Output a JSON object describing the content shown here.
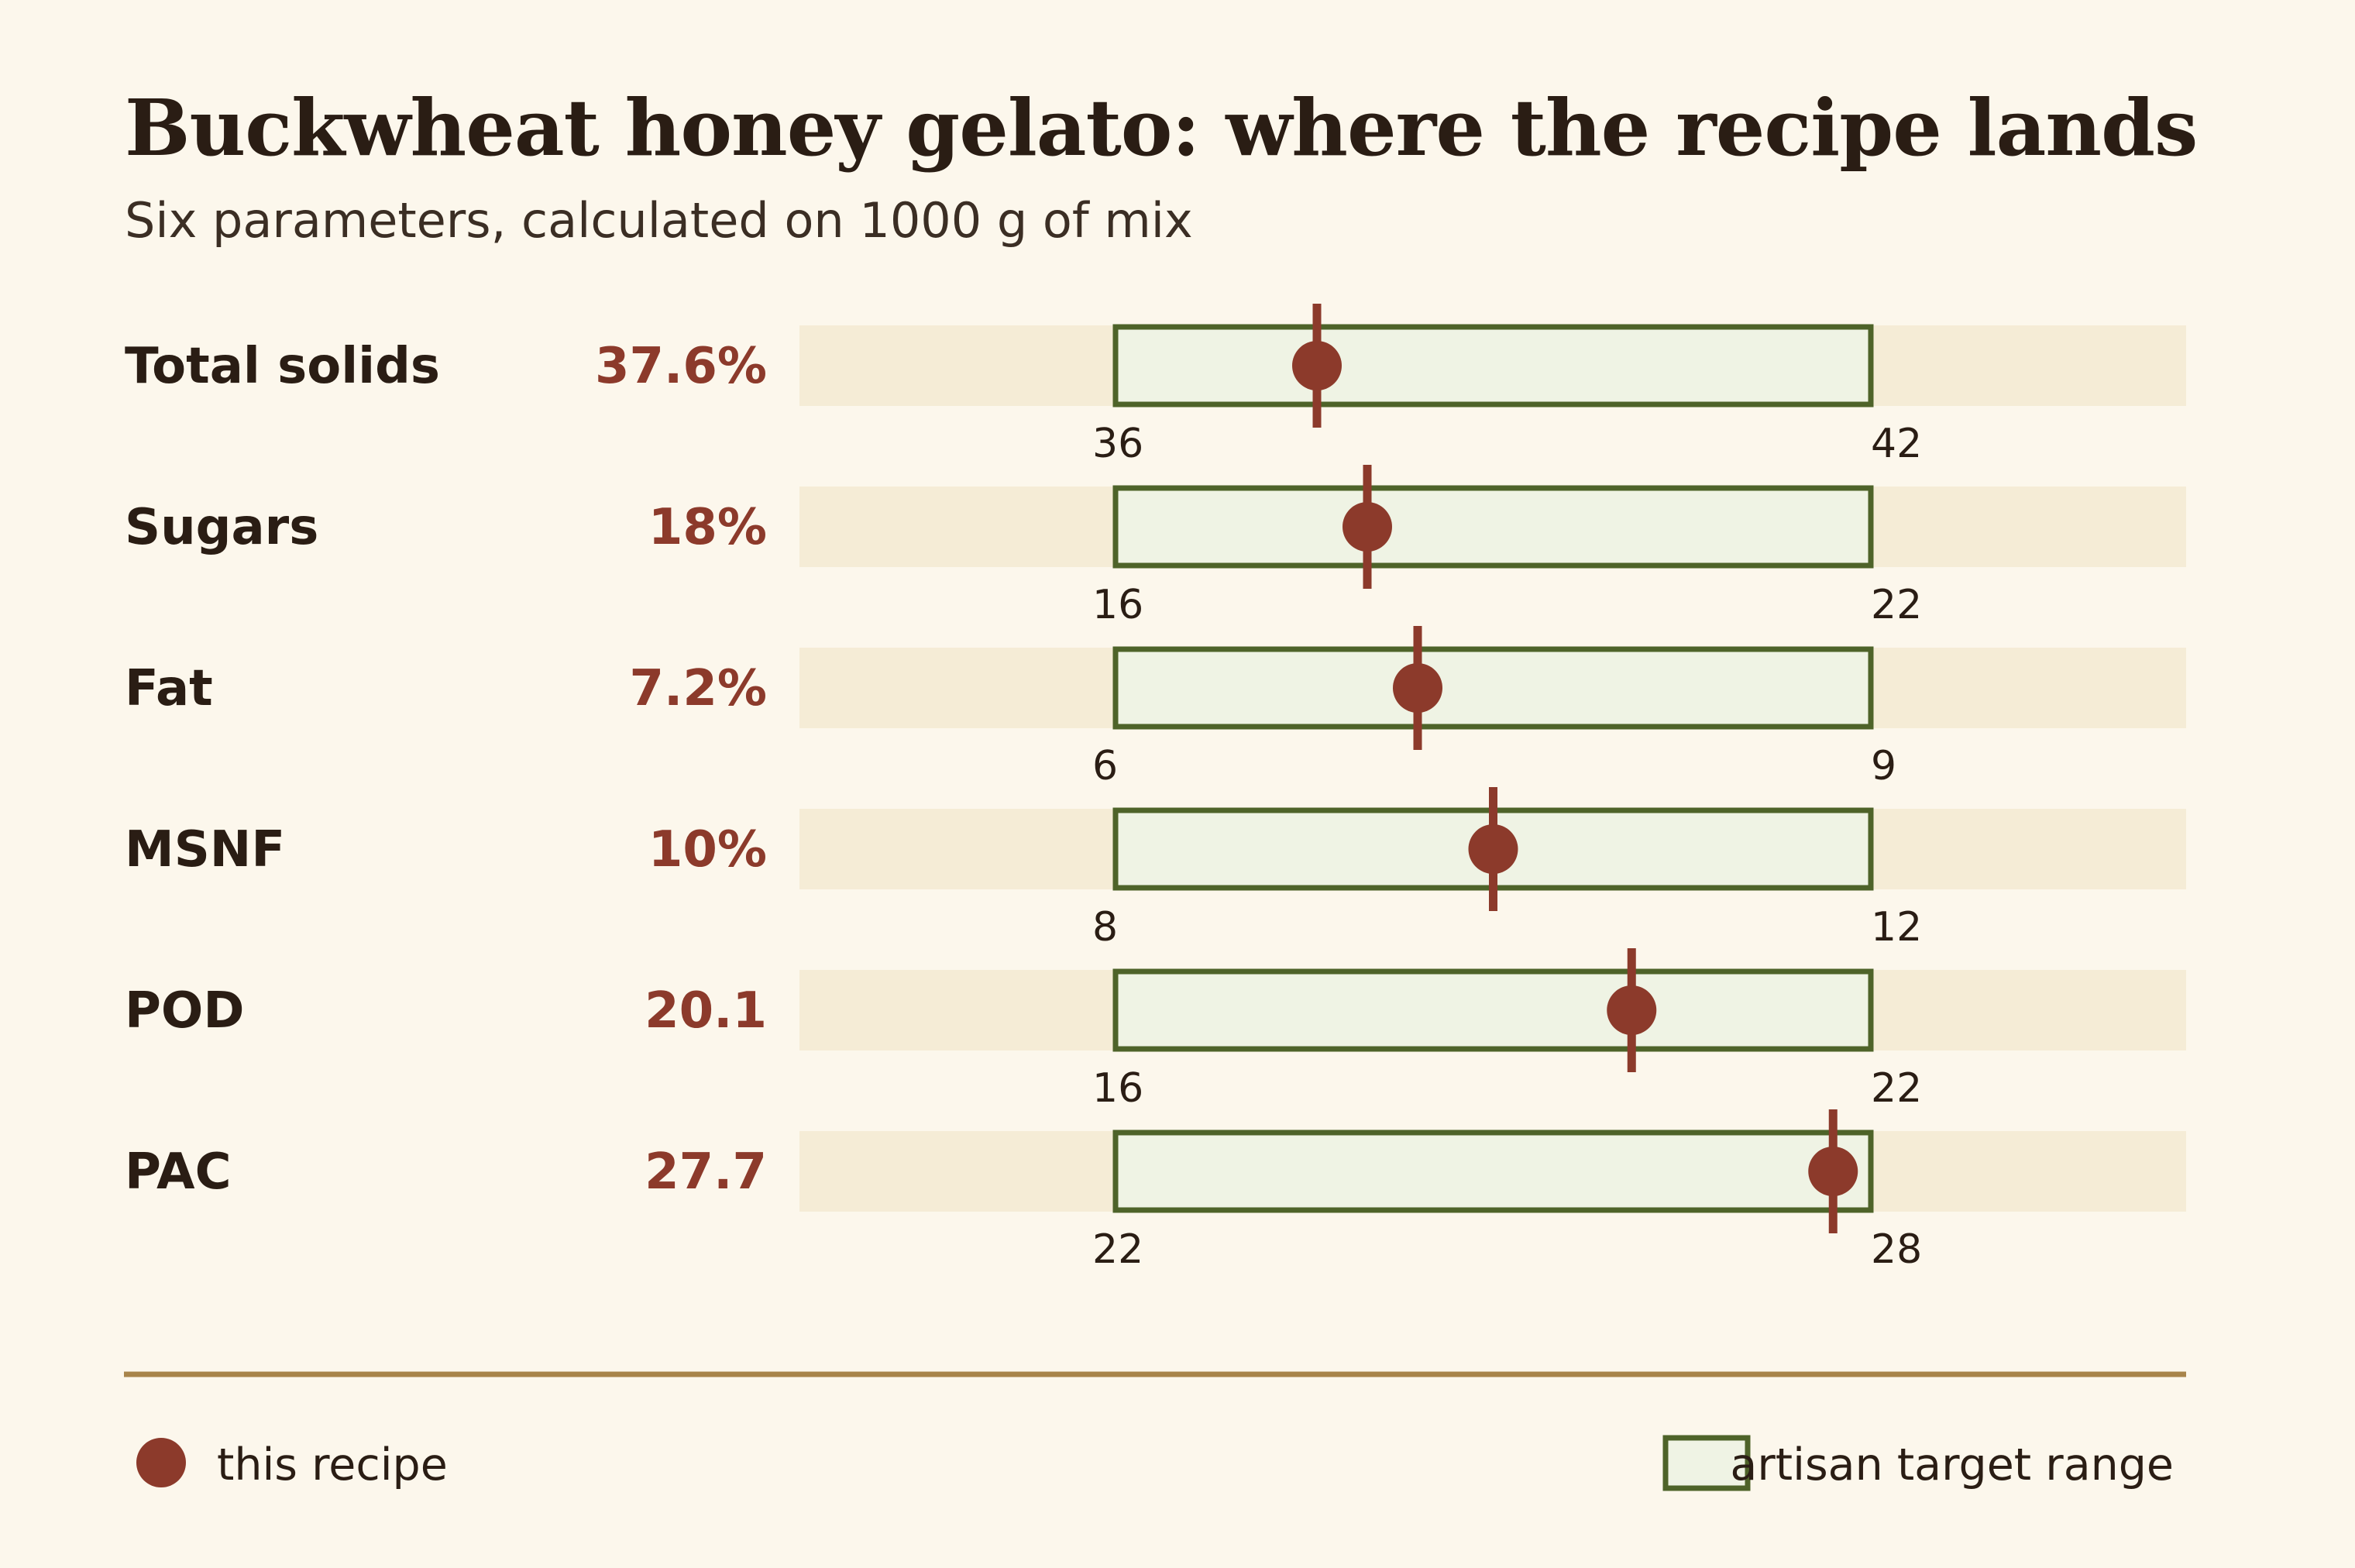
{
  "title": "Buckwheat honey gelato: where the recipe lands",
  "subtitle": "Six parameters, calculated on 1000 g of mix",
  "legend": {
    "recipe_label": "this recipe",
    "range_label": "artisan target range"
  },
  "colors": {
    "background": "#fcf7ec",
    "track": "#f5ecd6",
    "range_fill": "#eff3e4",
    "range_stroke": "#4e6329",
    "marker": "#8c3a2b",
    "divider": "#a8844a",
    "text": "#2a1d14"
  },
  "chart_data": {
    "type": "bullet",
    "title": "Buckwheat honey gelato: where the recipe lands",
    "subtitle": "Six parameters, calculated on 1000 g of mix",
    "legend": [
      "this recipe",
      "artisan target range"
    ],
    "rows": [
      {
        "label": "Total solids",
        "value": 37.6,
        "display": "37.6%",
        "range": [
          36,
          42
        ],
        "range_labels": [
          "36",
          "42"
        ]
      },
      {
        "label": "Sugars",
        "value": 18,
        "display": "18%",
        "range": [
          16,
          22
        ],
        "range_labels": [
          "16",
          "22"
        ]
      },
      {
        "label": "Fat",
        "value": 7.2,
        "display": "7.2%",
        "range": [
          6,
          9
        ],
        "range_labels": [
          "6",
          "9"
        ]
      },
      {
        "label": "MSNF",
        "value": 10,
        "display": "10%",
        "range": [
          8,
          12
        ],
        "range_labels": [
          "8",
          "12"
        ]
      },
      {
        "label": "POD",
        "value": 20.1,
        "display": "20.1",
        "range": [
          16,
          22
        ],
        "range_labels": [
          "16",
          "22"
        ]
      },
      {
        "label": "PAC",
        "value": 27.7,
        "display": "27.7",
        "range": [
          22,
          28
        ],
        "range_labels": [
          "22",
          "28"
        ]
      }
    ]
  }
}
